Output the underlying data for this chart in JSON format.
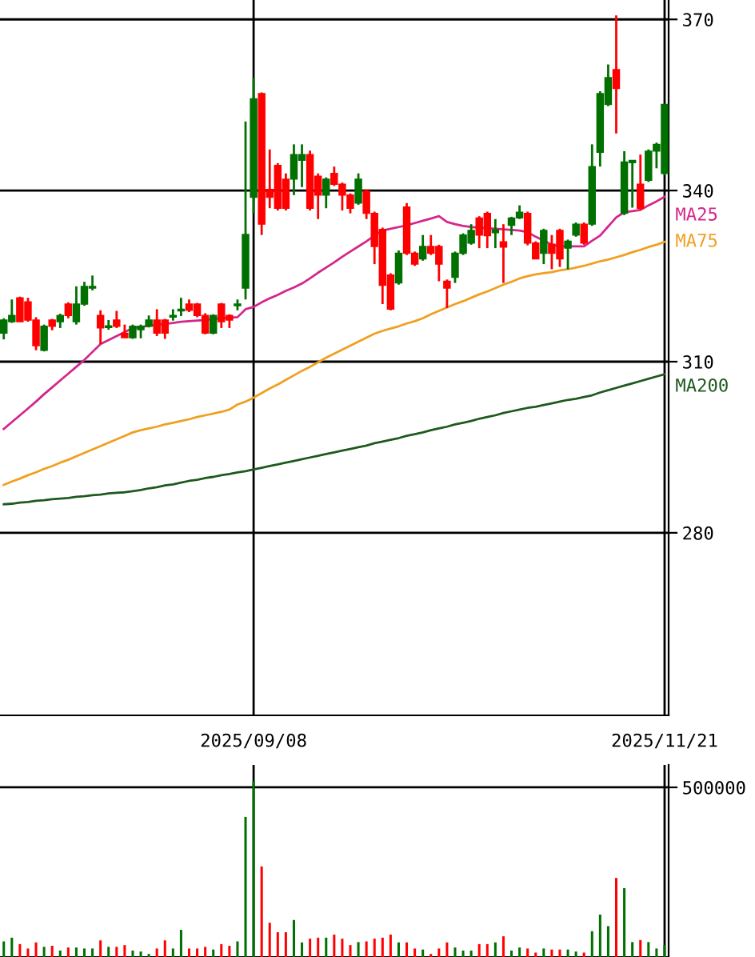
{
  "chart_data": [
    {
      "type": "candlestick",
      "categories": [
        null,
        null,
        null,
        null,
        null,
        null,
        null,
        null,
        null,
        null,
        null,
        null,
        null,
        null,
        null,
        null,
        null,
        null,
        null,
        null,
        null,
        null,
        null,
        null,
        null,
        null,
        null,
        null,
        null,
        null,
        null,
        "2025/09/08",
        null,
        null,
        null,
        null,
        null,
        null,
        null,
        null,
        null,
        null,
        null,
        null,
        null,
        null,
        null,
        null,
        null,
        null,
        null,
        null,
        null,
        null,
        null,
        null,
        null,
        null,
        null,
        null,
        null,
        null,
        null,
        null,
        null,
        null,
        null,
        null,
        null,
        null,
        null,
        null,
        null,
        null,
        null,
        null,
        null,
        null,
        null,
        null,
        null,
        null,
        "2025/11/21"
      ],
      "ohlc": [
        [
          315.0,
          317.6,
          313.9,
          317.3
        ],
        [
          317.0,
          320.9,
          316.8,
          318.1
        ],
        [
          321.2,
          321.4,
          317.0,
          317.0
        ],
        [
          320.5,
          321.2,
          317.0,
          317.3
        ],
        [
          317.3,
          317.8,
          312.0,
          312.8
        ],
        [
          312.0,
          316.5,
          311.8,
          316.2
        ],
        [
          317.3,
          317.5,
          315.5,
          316.2
        ],
        [
          317.0,
          318.4,
          315.9,
          318.1
        ],
        [
          320.1,
          320.4,
          317.6,
          318.1
        ],
        [
          317.0,
          323.2,
          316.5,
          320.1
        ],
        [
          320.1,
          324.0,
          319.8,
          323.2
        ],
        [
          322.9,
          325.1,
          322.5,
          323.2
        ],
        [
          318.1,
          319.0,
          313.1,
          315.9
        ],
        [
          316.0,
          317.3,
          315.6,
          316.3
        ],
        [
          317.3,
          318.9,
          315.9,
          316.2
        ],
        [
          315.0,
          316.5,
          314.2,
          314.2
        ],
        [
          314.2,
          316.5,
          314.0,
          316.2
        ],
        [
          315.6,
          316.5,
          314.1,
          316.2
        ],
        [
          316.2,
          318.1,
          316.0,
          317.3
        ],
        [
          317.3,
          319.2,
          314.5,
          315.0
        ],
        [
          317.3,
          317.5,
          314.0,
          315.0
        ],
        [
          317.8,
          319.2,
          317.2,
          318.1
        ],
        [
          318.9,
          321.2,
          318.0,
          319.2
        ],
        [
          320.1,
          320.9,
          318.7,
          319.0
        ],
        [
          320.1,
          320.3,
          317.8,
          318.1
        ],
        [
          318.1,
          318.5,
          314.8,
          315.0
        ],
        [
          315.0,
          318.3,
          314.8,
          318.1
        ],
        [
          320.1,
          320.3,
          315.9,
          317.0
        ],
        [
          318.1,
          318.3,
          315.9,
          317.3
        ],
        [
          319.8,
          320.9,
          319.0,
          320.1
        ],
        [
          322.9,
          352.1,
          320.9,
          332.3
        ],
        [
          338.8,
          359.8,
          336.0,
          356.1
        ],
        [
          357.0,
          357.2,
          332.2,
          334.1
        ],
        [
          340.2,
          347.2,
          336.9,
          338.8
        ],
        [
          344.4,
          344.8,
          336.5,
          336.9
        ],
        [
          342.0,
          343.0,
          336.5,
          336.9
        ],
        [
          342.0,
          348.1,
          339.2,
          346.3
        ],
        [
          345.3,
          348.1,
          340.6,
          346.3
        ],
        [
          346.3,
          347.0,
          336.5,
          336.9
        ],
        [
          342.5,
          343.0,
          335.0,
          339.2
        ],
        [
          339.2,
          342.3,
          336.9,
          342.0
        ],
        [
          343.0,
          344.2,
          340.8,
          341.1
        ],
        [
          341.1,
          341.4,
          336.5,
          339.2
        ],
        [
          339.2,
          339.5,
          336.0,
          336.9
        ],
        [
          337.8,
          343.0,
          337.5,
          342.0
        ],
        [
          339.9,
          340.2,
          335.0,
          336.0
        ],
        [
          336.0,
          336.3,
          327.1,
          330.2
        ],
        [
          333.2,
          333.5,
          320.1,
          323.4
        ],
        [
          325.2,
          325.5,
          319.0,
          319.2
        ],
        [
          323.8,
          329.5,
          323.5,
          329.0
        ],
        [
          337.1,
          337.8,
          328.7,
          329.0
        ],
        [
          329.0,
          329.3,
          326.8,
          327.1
        ],
        [
          328.0,
          332.2,
          327.7,
          330.2
        ],
        [
          330.2,
          332.2,
          328.7,
          329.0
        ],
        [
          330.2,
          330.5,
          324.1,
          327.1
        ],
        [
          324.1,
          324.4,
          319.4,
          322.9
        ],
        [
          324.8,
          329.3,
          323.8,
          329.0
        ],
        [
          329.0,
          332.5,
          328.7,
          332.2
        ],
        [
          330.8,
          334.1,
          330.5,
          333.0
        ],
        [
          335.2,
          335.5,
          329.9,
          332.2
        ],
        [
          336.0,
          336.3,
          329.9,
          332.1
        ],
        [
          332.6,
          335.0,
          329.9,
          333.1
        ],
        [
          331.0,
          334.1,
          323.8,
          330.1
        ],
        [
          333.9,
          335.4,
          332.2,
          335.2
        ],
        [
          335.2,
          337.4,
          335.0,
          336.2
        ],
        [
          336.0,
          336.3,
          330.4,
          330.8
        ],
        [
          330.8,
          331.1,
          328.0,
          328.0
        ],
        [
          329.0,
          333.3,
          327.1,
          333.0
        ],
        [
          330.6,
          332.2,
          326.2,
          329.0
        ],
        [
          333.0,
          333.3,
          326.6,
          328.0
        ],
        [
          329.9,
          331.4,
          326.2,
          331.1
        ],
        [
          332.2,
          334.4,
          331.9,
          334.1
        ],
        [
          334.1,
          334.4,
          330.5,
          330.8
        ],
        [
          334.1,
          348.1,
          333.8,
          344.2
        ],
        [
          346.7,
          357.4,
          344.2,
          357.0
        ],
        [
          355.1,
          362.1,
          354.8,
          359.8
        ],
        [
          361.2,
          370.7,
          350.0,
          357.9
        ],
        [
          336.0,
          346.9,
          335.7,
          345.0
        ],
        [
          344.9,
          345.3,
          337.0,
          345.3
        ],
        [
          341.1,
          346.3,
          336.6,
          336.9
        ],
        [
          341.8,
          347.2,
          341.5,
          346.9
        ],
        [
          346.9,
          348.4,
          343.9,
          348.1
        ],
        [
          343.0,
          355.1,
          342.7,
          355.1
        ]
      ],
      "colors": [
        "#007000",
        "#007000",
        "#ff0000",
        "#ff0000",
        "#ff0000",
        "#007000",
        "#ff0000",
        "#007000",
        "#ff0000",
        "#007000",
        "#007000",
        "#007000",
        "#ff0000",
        "#007000",
        "#ff0000",
        "#ff0000",
        "#007000",
        "#007000",
        "#007000",
        "#ff0000",
        "#ff0000",
        "#007000",
        "#007000",
        "#ff0000",
        "#ff0000",
        "#ff0000",
        "#007000",
        "#ff0000",
        "#ff0000",
        "#007000",
        "#007000",
        "#007000",
        "#ff0000",
        "#ff0000",
        "#ff0000",
        "#ff0000",
        "#007000",
        "#007000",
        "#ff0000",
        "#ff0000",
        "#007000",
        "#ff0000",
        "#ff0000",
        "#ff0000",
        "#007000",
        "#ff0000",
        "#ff0000",
        "#ff0000",
        "#ff0000",
        "#007000",
        "#ff0000",
        "#ff0000",
        "#007000",
        "#ff0000",
        "#ff0000",
        "#ff0000",
        "#007000",
        "#007000",
        "#007000",
        "#ff0000",
        "#ff0000",
        "#007000",
        "#ff0000",
        "#007000",
        "#007000",
        "#ff0000",
        "#ff0000",
        "#007000",
        "#ff0000",
        "#ff0000",
        "#007000",
        "#007000",
        "#ff0000",
        "#007000",
        "#007000",
        "#007000",
        "#ff0000",
        "#007000",
        "#007000",
        "#ff0000",
        "#007000",
        "#007000",
        "#007000"
      ],
      "series": [
        {
          "name": "MA25",
          "type": "line",
          "color": "#d4268c",
          "values": [
            298.2,
            299.4,
            300.6,
            301.8,
            303.0,
            304.3,
            305.5,
            306.7,
            307.9,
            309.1,
            310.3,
            311.7,
            313.1,
            313.8,
            314.5,
            315.2,
            315.9,
            316.1,
            316.3,
            316.5,
            316.6,
            316.8,
            317.0,
            317.1,
            317.2,
            317.3,
            317.5,
            317.6,
            317.7,
            317.8,
            319.2,
            319.6,
            320.4,
            321.1,
            321.7,
            322.4,
            323.0,
            323.7,
            324.6,
            325.6,
            326.5,
            327.4,
            328.4,
            329.3,
            330.2,
            331.1,
            332.1,
            333.0,
            333.3,
            333.6,
            333.9,
            334.3,
            334.7,
            335.1,
            335.5,
            334.5,
            334.1,
            333.8,
            333.6,
            333.5,
            333.4,
            333.3,
            333.2,
            333.1,
            333.0,
            332.7,
            331.9,
            331.2,
            330.5,
            330.2,
            330.2,
            330.2,
            330.2,
            331.2,
            332.1,
            333.7,
            335.3,
            336.2,
            336.4,
            336.6,
            337.4,
            338.1,
            338.9
          ]
        },
        {
          "name": "MA75",
          "type": "line",
          "color": "#f0a020",
          "values": [
            288.4,
            289.0,
            289.5,
            290.1,
            290.6,
            291.2,
            291.7,
            292.3,
            292.8,
            293.4,
            294.0,
            294.6,
            295.2,
            295.8,
            296.4,
            297.0,
            297.6,
            298.0,
            298.3,
            298.6,
            299.0,
            299.3,
            299.6,
            299.9,
            300.3,
            300.6,
            300.9,
            301.2,
            301.6,
            302.5,
            303.0,
            303.7,
            304.5,
            305.3,
            306.0,
            306.8,
            307.6,
            308.4,
            309.1,
            309.9,
            310.7,
            311.4,
            312.1,
            312.8,
            313.5,
            314.2,
            314.9,
            315.4,
            315.8,
            316.2,
            316.7,
            317.1,
            317.6,
            318.3,
            318.9,
            319.5,
            320.1,
            320.6,
            321.2,
            321.8,
            322.3,
            322.9,
            323.5,
            324.0,
            324.6,
            325.0,
            325.3,
            325.5,
            325.7,
            326.0,
            326.2,
            326.5,
            326.8,
            327.2,
            327.6,
            327.9,
            328.3,
            328.7,
            329.2,
            329.6,
            330.1,
            330.5,
            331.0
          ]
        },
        {
          "name": "MA200",
          "type": "line",
          "color": "#1e5a1e",
          "values": [
            285.0,
            285.1,
            285.3,
            285.4,
            285.6,
            285.7,
            285.9,
            286.0,
            286.1,
            286.3,
            286.4,
            286.6,
            286.7,
            286.9,
            287.0,
            287.1,
            287.3,
            287.5,
            287.8,
            288.0,
            288.3,
            288.5,
            288.8,
            289.1,
            289.3,
            289.6,
            289.8,
            290.1,
            290.3,
            290.6,
            290.8,
            291.1,
            291.4,
            291.7,
            292.0,
            292.3,
            292.6,
            292.9,
            293.2,
            293.5,
            293.8,
            294.1,
            294.4,
            294.7,
            295.0,
            295.3,
            295.7,
            296.0,
            296.3,
            296.6,
            297.0,
            297.3,
            297.6,
            298.0,
            298.3,
            298.6,
            299.0,
            299.3,
            299.6,
            300.0,
            300.3,
            300.6,
            301.0,
            301.3,
            301.6,
            301.9,
            302.1,
            302.4,
            302.7,
            303.0,
            303.3,
            303.5,
            303.8,
            304.1,
            304.6,
            305.0,
            305.4,
            305.8,
            306.2,
            306.6,
            307.0,
            307.4,
            307.8
          ]
        }
      ],
      "ylim": [
        248,
        373.4
      ],
      "yticks": [
        280,
        310,
        340,
        370
      ],
      "grid": true
    },
    {
      "type": "bar",
      "categories": [
        null,
        null,
        null,
        null,
        null,
        null,
        null,
        null,
        null,
        null,
        null,
        null,
        null,
        null,
        null,
        null,
        null,
        null,
        null,
        null,
        null,
        null,
        null,
        null,
        null,
        null,
        null,
        null,
        null,
        null,
        null,
        "2025/09/08",
        null,
        null,
        null,
        null,
        null,
        null,
        null,
        null,
        null,
        null,
        null,
        null,
        null,
        null,
        null,
        null,
        null,
        null,
        null,
        null,
        null,
        null,
        null,
        null,
        null,
        null,
        null,
        null,
        null,
        null,
        null,
        null,
        null,
        null,
        null,
        null,
        null,
        null,
        null,
        null,
        null,
        null,
        null,
        null,
        null,
        null,
        null,
        null,
        null,
        null,
        "2025/11/21"
      ],
      "values": [
        46000,
        57000,
        38000,
        25000,
        43000,
        30000,
        33000,
        19000,
        28000,
        28000,
        25000,
        25000,
        49000,
        30000,
        30000,
        35000,
        19000,
        16000,
        9000,
        25000,
        49000,
        25000,
        80000,
        25000,
        25000,
        30000,
        22000,
        38000,
        33000,
        46000,
        413000,
        519000,
        267000,
        101000,
        73000,
        73000,
        109000,
        43000,
        54000,
        57000,
        57000,
        66000,
        54000,
        35000,
        44000,
        46000,
        54000,
        57000,
        66000,
        43000,
        43000,
        25000,
        22000,
        9000,
        25000,
        43000,
        28000,
        19000,
        19000,
        38000,
        38000,
        43000,
        61000,
        19000,
        28000,
        25000,
        13000,
        25000,
        22000,
        22000,
        22000,
        16000,
        13000,
        76000,
        125000,
        91000,
        233000,
        203000,
        44000,
        50000,
        44000,
        25000,
        35000
      ],
      "colors": [
        "#007000",
        "#007000",
        "#ff0000",
        "#ff0000",
        "#ff0000",
        "#007000",
        "#ff0000",
        "#007000",
        "#ff0000",
        "#007000",
        "#007000",
        "#007000",
        "#ff0000",
        "#007000",
        "#ff0000",
        "#ff0000",
        "#007000",
        "#007000",
        "#007000",
        "#ff0000",
        "#ff0000",
        "#007000",
        "#007000",
        "#ff0000",
        "#ff0000",
        "#ff0000",
        "#007000",
        "#ff0000",
        "#ff0000",
        "#007000",
        "#007000",
        "#007000",
        "#ff0000",
        "#ff0000",
        "#ff0000",
        "#ff0000",
        "#007000",
        "#007000",
        "#ff0000",
        "#ff0000",
        "#007000",
        "#ff0000",
        "#ff0000",
        "#ff0000",
        "#007000",
        "#ff0000",
        "#ff0000",
        "#ff0000",
        "#ff0000",
        "#007000",
        "#ff0000",
        "#ff0000",
        "#007000",
        "#ff0000",
        "#ff0000",
        "#ff0000",
        "#007000",
        "#007000",
        "#007000",
        "#ff0000",
        "#ff0000",
        "#007000",
        "#ff0000",
        "#007000",
        "#007000",
        "#ff0000",
        "#ff0000",
        "#007000",
        "#ff0000",
        "#ff0000",
        "#007000",
        "#007000",
        "#ff0000",
        "#007000",
        "#007000",
        "#007000",
        "#ff0000",
        "#007000",
        "#007000",
        "#ff0000",
        "#007000",
        "#007000",
        "#007000"
      ],
      "ylim": [
        0,
        566000
      ],
      "yticks": [
        500000
      ],
      "grid": true,
      "tick_labels": "y"
    }
  ]
}
